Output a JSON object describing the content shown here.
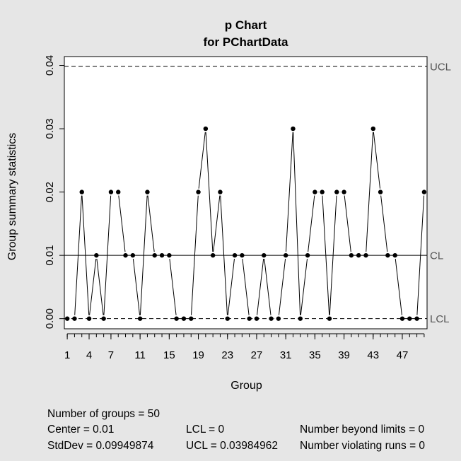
{
  "chart_data": {
    "type": "line",
    "title": "p Chart",
    "subtitle": "for PChartData",
    "xlabel": "Group",
    "ylabel": "Group summary statistics",
    "x": [
      1,
      2,
      3,
      4,
      5,
      6,
      7,
      8,
      9,
      10,
      11,
      12,
      13,
      14,
      15,
      16,
      17,
      18,
      19,
      20,
      21,
      22,
      23,
      24,
      25,
      26,
      27,
      28,
      29,
      30,
      31,
      32,
      33,
      34,
      35,
      36,
      37,
      38,
      39,
      40,
      41,
      42,
      43,
      44,
      45,
      46,
      47,
      48,
      49,
      50
    ],
    "values": [
      0,
      0,
      0.02,
      0,
      0.01,
      0,
      0.02,
      0.02,
      0.01,
      0.01,
      0,
      0.02,
      0.01,
      0.01,
      0.01,
      0,
      0,
      0,
      0.02,
      0.03,
      0.01,
      0.02,
      0,
      0.01,
      0.01,
      0,
      0,
      0.01,
      0,
      0,
      0.01,
      0.03,
      0,
      0.01,
      0.02,
      0.02,
      0,
      0.02,
      0.02,
      0.01,
      0.01,
      0.01,
      0.03,
      0.02,
      0.01,
      0.01,
      0,
      0,
      0,
      0.02
    ],
    "x_ticks": [
      "1",
      "4",
      "7",
      "11",
      "15",
      "19",
      "23",
      "27",
      "31",
      "35",
      "39",
      "43",
      "47"
    ],
    "y_ticks": [
      "0.00",
      "0.01",
      "0.02",
      "0.03",
      "0.04"
    ],
    "xlim": [
      0.6,
      50.4
    ],
    "ylim": [
      -0.0016,
      0.0414
    ],
    "control_lines": {
      "ucl": {
        "label": "UCL",
        "value": 0.03984962
      },
      "cl": {
        "label": "CL",
        "value": 0.01
      },
      "lcl": {
        "label": "LCL",
        "value": 0
      }
    },
    "grid": false
  },
  "stats": {
    "groups": "Number of groups = 50",
    "center": "Center = 0.01",
    "stddev": "StdDev = 0.09949874",
    "lcl": "LCL = 0",
    "ucl": "UCL = 0.03984962",
    "beyond": "Number beyond limits = 0",
    "violating": "Number violating runs = 0"
  }
}
